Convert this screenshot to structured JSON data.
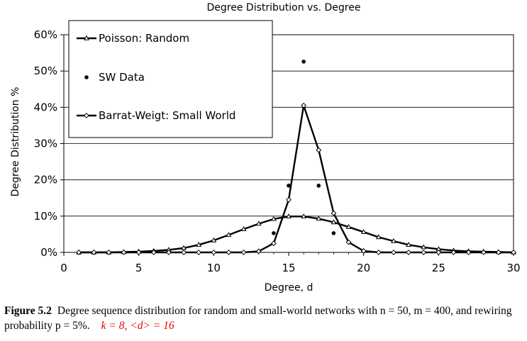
{
  "figure": {
    "label": "Figure 5.2",
    "caption": "Degree sequence distribution for random and small-world networks with n = 50, m = 400, and rewiring probability p = 5%.",
    "note": "k = 8, <d> = 16"
  },
  "chart_data": {
    "type": "line",
    "title": "Degree Distribution vs. Degree",
    "xlabel": "Degree, d",
    "ylabel": "Degree Distribution %",
    "xlim": [
      0,
      30
    ],
    "ylim": [
      0,
      60
    ],
    "x_ticks": [
      "0",
      "5",
      "10",
      "15",
      "20",
      "25",
      "30"
    ],
    "y_ticks": [
      "0%",
      "10%",
      "20%",
      "30%",
      "40%",
      "50%",
      "60%"
    ],
    "grid": "horizontal",
    "legend_position": "top-left",
    "series": [
      {
        "name": "Poisson: Random",
        "marker": "triangle",
        "style": "line",
        "x": [
          1,
          2,
          3,
          4,
          5,
          6,
          7,
          8,
          9,
          10,
          11,
          12,
          13,
          14,
          15,
          16,
          17,
          18,
          19,
          20,
          21,
          22,
          23,
          24,
          25,
          26,
          27,
          28,
          29,
          30
        ],
        "y": [
          0.0,
          0.0,
          0.0,
          0.1,
          0.2,
          0.4,
          0.7,
          1.2,
          2.1,
          3.3,
          4.8,
          6.4,
          7.9,
          9.2,
          9.9,
          9.9,
          9.3,
          8.3,
          7.0,
          5.6,
          4.2,
          3.1,
          2.1,
          1.4,
          0.9,
          0.5,
          0.3,
          0.2,
          0.1,
          0.0
        ]
      },
      {
        "name": "SW Data",
        "marker": "dot",
        "style": "points",
        "x": [
          14,
          15,
          16,
          17,
          18
        ],
        "y": [
          5.3,
          18.4,
          52.6,
          18.4,
          5.3
        ]
      },
      {
        "name": "Barrat-Weigt: Small World",
        "marker": "diamond",
        "style": "line",
        "x": [
          1,
          2,
          3,
          4,
          5,
          6,
          7,
          8,
          9,
          10,
          11,
          12,
          13,
          14,
          15,
          16,
          17,
          18,
          19,
          20,
          21,
          22,
          23,
          24,
          25,
          26,
          27,
          28,
          29,
          30
        ],
        "y": [
          0,
          0,
          0,
          0,
          0,
          0,
          0,
          0,
          0,
          0,
          0,
          0,
          0.3,
          2.5,
          14.5,
          40.5,
          28.2,
          10.8,
          2.8,
          0.4,
          0,
          0,
          0,
          0,
          0,
          0,
          0,
          0,
          0,
          0
        ]
      }
    ]
  }
}
